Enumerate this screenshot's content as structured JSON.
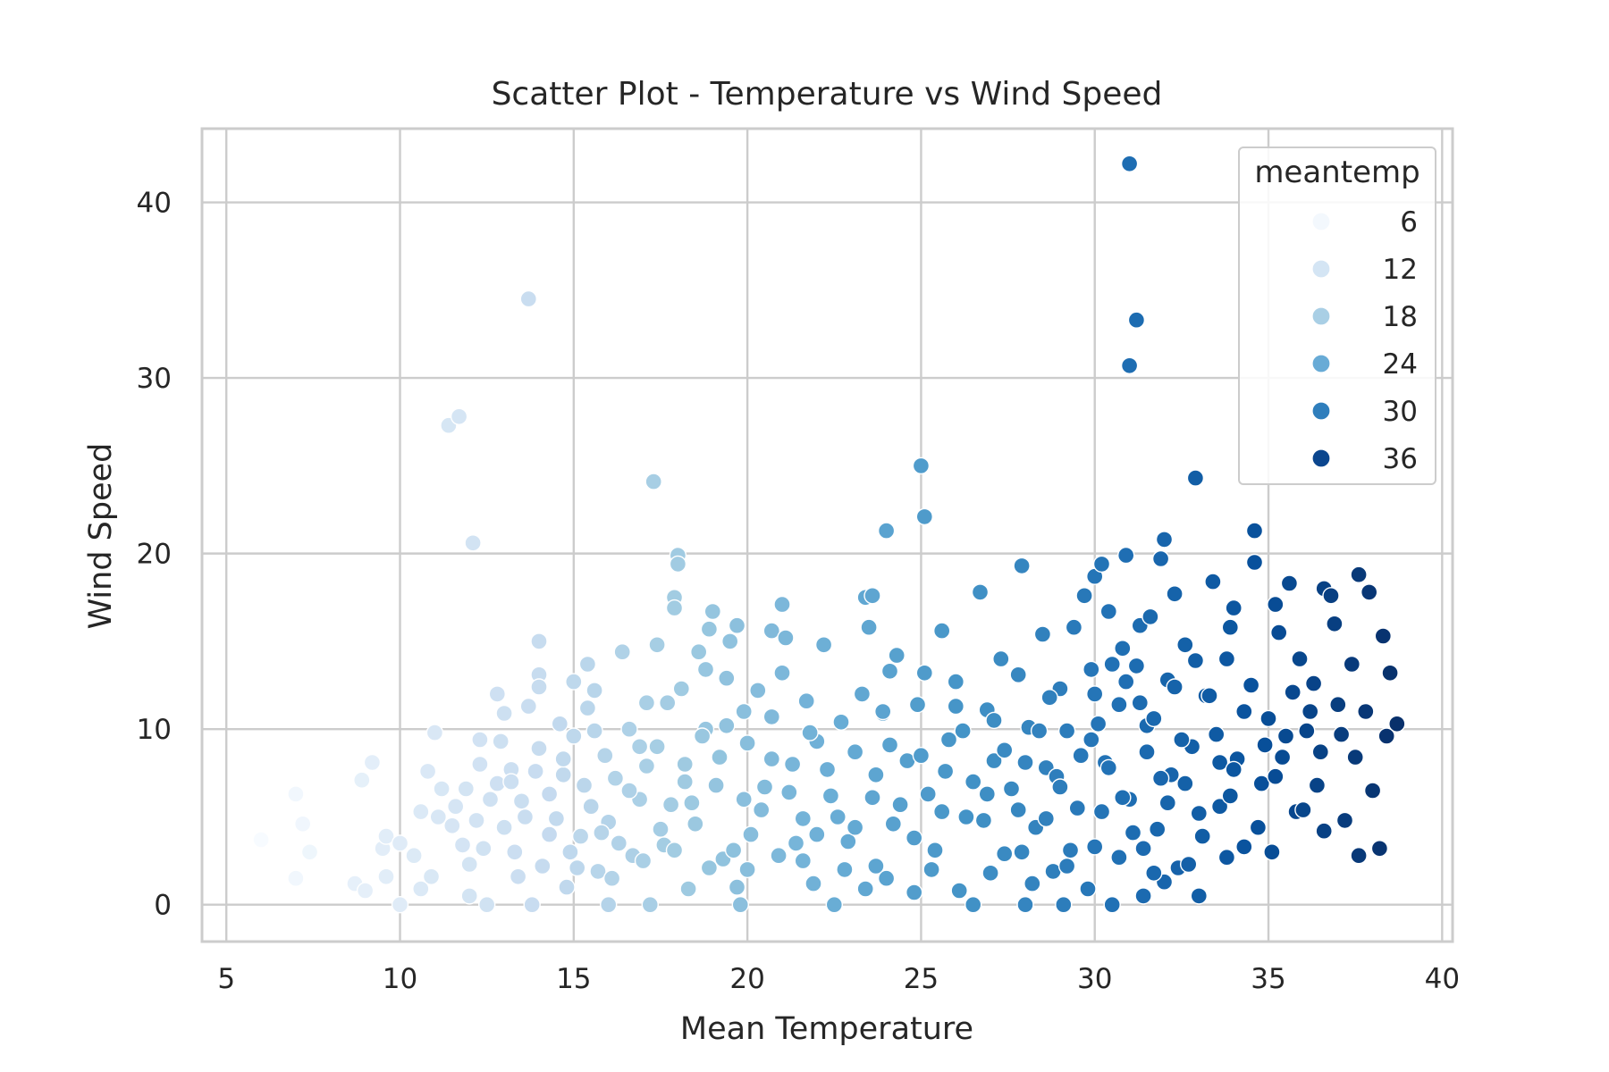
{
  "chart_data": {
    "type": "scatter",
    "title": "Scatter Plot - Temperature vs Wind Speed",
    "xlabel": "Mean Temperature",
    "ylabel": "Wind Speed",
    "xlim": [
      4.3,
      40.3
    ],
    "ylim": [
      -2.1,
      44.2
    ],
    "x_ticks": [
      5,
      10,
      15,
      20,
      25,
      30,
      35,
      40
    ],
    "y_ticks": [
      0,
      10,
      20,
      30,
      40
    ],
    "grid": true,
    "legend": {
      "title": "meantemp",
      "position": "top-right",
      "entries": [
        {
          "label": "6",
          "value": 6,
          "color": "#f3f8fd"
        },
        {
          "label": "12",
          "value": 12,
          "color": "#d4e5f4"
        },
        {
          "label": "18",
          "value": 18,
          "color": "#a9cfe5"
        },
        {
          "label": "24",
          "value": 24,
          "color": "#68abd6"
        },
        {
          "label": "30",
          "value": 30,
          "color": "#2f7ebc"
        },
        {
          "label": "36",
          "value": 36,
          "color": "#0b468e"
        }
      ]
    },
    "hue": "meantemp",
    "colormap": [
      "#f7fbff",
      "#deebf7",
      "#c6dbef",
      "#9ecae1",
      "#6baed6",
      "#4292c6",
      "#2171b5",
      "#08519c",
      "#08306b"
    ],
    "color_range": [
      6,
      38.7
    ],
    "points": [
      [
        6.0,
        3.7
      ],
      [
        7.0,
        6.3
      ],
      [
        7.0,
        1.5
      ],
      [
        7.2,
        4.6
      ],
      [
        7.4,
        3.0
      ],
      [
        8.7,
        1.2
      ],
      [
        8.9,
        7.1
      ],
      [
        9.0,
        0.8
      ],
      [
        9.2,
        8.1
      ],
      [
        9.5,
        3.2
      ],
      [
        9.6,
        3.9
      ],
      [
        9.6,
        1.6
      ],
      [
        10.0,
        3.5
      ],
      [
        10.0,
        0.0
      ],
      [
        10.4,
        2.8
      ],
      [
        10.6,
        5.3
      ],
      [
        10.6,
        0.9
      ],
      [
        10.8,
        7.6
      ],
      [
        10.9,
        1.6
      ],
      [
        11.0,
        9.8
      ],
      [
        11.1,
        5.0
      ],
      [
        11.2,
        6.6
      ],
      [
        11.4,
        27.3
      ],
      [
        11.6,
        5.6
      ],
      [
        11.7,
        27.8
      ],
      [
        11.8,
        3.4
      ],
      [
        11.9,
        6.6
      ],
      [
        12.0,
        0.5
      ],
      [
        12.1,
        20.6
      ],
      [
        12.2,
        4.8
      ],
      [
        12.3,
        8.0
      ],
      [
        12.4,
        3.2
      ],
      [
        12.5,
        0.0
      ],
      [
        12.6,
        6.0
      ],
      [
        12.8,
        12.0
      ],
      [
        12.9,
        9.3
      ],
      [
        13.0,
        4.4
      ],
      [
        13.0,
        10.9
      ],
      [
        13.2,
        7.7
      ],
      [
        13.4,
        1.6
      ],
      [
        13.5,
        5.9
      ],
      [
        13.7,
        11.3
      ],
      [
        13.7,
        34.5
      ],
      [
        13.8,
        0.0
      ],
      [
        14.0,
        15.0
      ],
      [
        14.0,
        8.9
      ],
      [
        14.0,
        13.1
      ],
      [
        14.0,
        12.4
      ],
      [
        14.1,
        2.2
      ],
      [
        14.3,
        6.3
      ],
      [
        14.5,
        4.9
      ],
      [
        14.6,
        10.3
      ],
      [
        14.7,
        7.4
      ],
      [
        14.8,
        1.0
      ],
      [
        15.0,
        9.6
      ],
      [
        15.0,
        12.7
      ],
      [
        15.2,
        3.9
      ],
      [
        15.4,
        11.2
      ],
      [
        15.4,
        13.7
      ],
      [
        15.5,
        5.6
      ],
      [
        15.6,
        12.2
      ],
      [
        15.7,
        1.9
      ],
      [
        15.9,
        8.5
      ],
      [
        16.0,
        4.7
      ],
      [
        16.0,
        0.0
      ],
      [
        16.2,
        7.2
      ],
      [
        16.4,
        14.4
      ],
      [
        16.6,
        10.0
      ],
      [
        16.7,
        2.8
      ],
      [
        16.9,
        6.0
      ],
      [
        17.1,
        11.5
      ],
      [
        17.2,
        0.0
      ],
      [
        17.3,
        24.1
      ],
      [
        17.4,
        14.8
      ],
      [
        17.4,
        9.0
      ],
      [
        17.6,
        3.4
      ],
      [
        17.8,
        5.7
      ],
      [
        17.9,
        17.5
      ],
      [
        17.9,
        16.9
      ],
      [
        18.0,
        19.9
      ],
      [
        18.0,
        19.4
      ],
      [
        18.1,
        12.3
      ],
      [
        18.2,
        8.0
      ],
      [
        18.3,
        0.9
      ],
      [
        18.5,
        4.6
      ],
      [
        18.6,
        14.4
      ],
      [
        18.8,
        10.0
      ],
      [
        18.8,
        13.4
      ],
      [
        18.9,
        15.7
      ],
      [
        19.0,
        16.7
      ],
      [
        19.1,
        6.8
      ],
      [
        19.3,
        2.6
      ],
      [
        19.4,
        12.9
      ],
      [
        19.5,
        15.0
      ],
      [
        19.7,
        15.9
      ],
      [
        19.8,
        0.0
      ],
      [
        19.9,
        11.0
      ],
      [
        20.0,
        9.2
      ],
      [
        20.1,
        4.0
      ],
      [
        20.3,
        12.2
      ],
      [
        20.5,
        6.7
      ],
      [
        20.7,
        15.6
      ],
      [
        20.7,
        10.7
      ],
      [
        20.9,
        2.8
      ],
      [
        21.0,
        17.1
      ],
      [
        21.0,
        13.2
      ],
      [
        21.1,
        15.2
      ],
      [
        21.3,
        8.0
      ],
      [
        21.6,
        4.9
      ],
      [
        21.7,
        11.6
      ],
      [
        21.9,
        1.2
      ],
      [
        22.0,
        9.3
      ],
      [
        22.2,
        14.8
      ],
      [
        22.4,
        6.2
      ],
      [
        22.5,
        0.0
      ],
      [
        22.7,
        10.4
      ],
      [
        22.9,
        3.6
      ],
      [
        23.1,
        8.7
      ],
      [
        23.3,
        12.0
      ],
      [
        23.4,
        17.5
      ],
      [
        23.5,
        15.8
      ],
      [
        23.6,
        17.6
      ],
      [
        23.6,
        6.1
      ],
      [
        23.7,
        2.2
      ],
      [
        23.9,
        10.9
      ],
      [
        24.0,
        21.3
      ],
      [
        24.1,
        13.3
      ],
      [
        24.2,
        4.6
      ],
      [
        24.3,
        14.2
      ],
      [
        24.6,
        8.2
      ],
      [
        24.8,
        0.7
      ],
      [
        24.9,
        11.4
      ],
      [
        25.0,
        25.0
      ],
      [
        25.1,
        22.1
      ],
      [
        25.1,
        13.2
      ],
      [
        25.2,
        6.3
      ],
      [
        25.4,
        3.1
      ],
      [
        25.6,
        15.6
      ],
      [
        25.8,
        9.4
      ],
      [
        26.0,
        12.7
      ],
      [
        26.1,
        0.8
      ],
      [
        26.3,
        5.0
      ],
      [
        26.5,
        0.0
      ],
      [
        26.7,
        17.8
      ],
      [
        26.9,
        11.1
      ],
      [
        27.1,
        8.2
      ],
      [
        27.3,
        14.0
      ],
      [
        27.4,
        2.9
      ],
      [
        27.6,
        6.6
      ],
      [
        27.8,
        13.1
      ],
      [
        27.9,
        19.3
      ],
      [
        28.0,
        0.0
      ],
      [
        28.1,
        10.1
      ],
      [
        28.3,
        4.4
      ],
      [
        28.5,
        15.4
      ],
      [
        28.6,
        7.8
      ],
      [
        28.8,
        1.9
      ],
      [
        29.0,
        12.3
      ],
      [
        29.1,
        0.0
      ],
      [
        29.2,
        9.9
      ],
      [
        29.4,
        15.8
      ],
      [
        29.5,
        5.5
      ],
      [
        29.7,
        17.6
      ],
      [
        29.9,
        13.4
      ],
      [
        30.0,
        3.3
      ],
      [
        30.0,
        18.7
      ],
      [
        30.2,
        19.4
      ],
      [
        30.3,
        8.1
      ],
      [
        30.4,
        16.7
      ],
      [
        30.5,
        0.0
      ],
      [
        30.7,
        11.4
      ],
      [
        30.8,
        14.6
      ],
      [
        30.9,
        19.9
      ],
      [
        31.0,
        42.2
      ],
      [
        31.0,
        30.7
      ],
      [
        31.0,
        6.0
      ],
      [
        31.2,
        33.3
      ],
      [
        31.3,
        15.9
      ],
      [
        31.4,
        0.5
      ],
      [
        31.5,
        10.2
      ],
      [
        31.6,
        16.4
      ],
      [
        31.8,
        4.3
      ],
      [
        31.9,
        19.7
      ],
      [
        32.0,
        20.8
      ],
      [
        32.1,
        12.8
      ],
      [
        32.2,
        7.4
      ],
      [
        32.3,
        17.7
      ],
      [
        32.4,
        2.1
      ],
      [
        32.6,
        14.8
      ],
      [
        32.8,
        9.0
      ],
      [
        32.9,
        24.3
      ],
      [
        33.0,
        0.5
      ],
      [
        33.2,
        11.9
      ],
      [
        33.4,
        18.4
      ],
      [
        33.6,
        5.6
      ],
      [
        33.8,
        14.0
      ],
      [
        33.9,
        15.8
      ],
      [
        34.0,
        16.9
      ],
      [
        34.1,
        8.3
      ],
      [
        34.3,
        3.3
      ],
      [
        34.5,
        12.5
      ],
      [
        34.6,
        21.3
      ],
      [
        34.6,
        19.5
      ],
      [
        34.8,
        6.9
      ],
      [
        35.0,
        10.6
      ],
      [
        35.1,
        3.0
      ],
      [
        35.2,
        17.1
      ],
      [
        35.3,
        15.5
      ],
      [
        35.4,
        8.4
      ],
      [
        35.6,
        18.3
      ],
      [
        35.7,
        12.1
      ],
      [
        35.8,
        5.3
      ],
      [
        35.9,
        14.0
      ],
      [
        36.1,
        9.9
      ],
      [
        36.3,
        12.6
      ],
      [
        36.4,
        6.8
      ],
      [
        36.6,
        18.0
      ],
      [
        36.6,
        4.2
      ],
      [
        36.8,
        17.6
      ],
      [
        36.9,
        16.0
      ],
      [
        37.0,
        11.4
      ],
      [
        37.2,
        4.8
      ],
      [
        37.4,
        13.7
      ],
      [
        37.5,
        8.4
      ],
      [
        37.6,
        18.8
      ],
      [
        37.6,
        2.8
      ],
      [
        37.8,
        11.0
      ],
      [
        37.9,
        17.8
      ],
      [
        38.0,
        6.5
      ],
      [
        38.2,
        3.2
      ],
      [
        38.3,
        15.3
      ],
      [
        38.4,
        9.6
      ],
      [
        38.5,
        13.2
      ],
      [
        38.7,
        10.3
      ],
      [
        29.6,
        8.5
      ],
      [
        30.8,
        6.1
      ],
      [
        31.1,
        4.1
      ],
      [
        31.7,
        10.6
      ],
      [
        32.3,
        12.4
      ],
      [
        32.7,
        2.3
      ],
      [
        33.5,
        9.7
      ],
      [
        30.4,
        7.8
      ],
      [
        29.3,
        3.1
      ],
      [
        28.4,
        9.9
      ],
      [
        27.8,
        5.4
      ],
      [
        31.9,
        7.2
      ],
      [
        32.5,
        9.4
      ],
      [
        33.9,
        6.2
      ],
      [
        34.7,
        4.4
      ],
      [
        28.2,
        1.2
      ],
      [
        30.0,
        12.0
      ],
      [
        31.3,
        11.5
      ],
      [
        32.9,
        13.9
      ],
      [
        29.8,
        0.9
      ],
      [
        30.7,
        2.7
      ],
      [
        33.1,
        3.9
      ],
      [
        34.3,
        11.0
      ],
      [
        28.9,
        7.3
      ],
      [
        27.4,
        8.8
      ],
      [
        26.8,
        4.8
      ],
      [
        27.1,
        10.5
      ],
      [
        25.7,
        7.6
      ],
      [
        24.4,
        5.7
      ],
      [
        23.1,
        4.4
      ],
      [
        22.3,
        7.7
      ],
      [
        21.4,
        3.5
      ],
      [
        20.4,
        5.4
      ],
      [
        19.6,
        3.1
      ],
      [
        19.2,
        8.4
      ],
      [
        18.4,
        5.8
      ],
      [
        17.5,
        4.3
      ],
      [
        16.6,
        6.5
      ],
      [
        15.8,
        4.1
      ],
      [
        15.1,
        2.1
      ],
      [
        14.3,
        4.0
      ],
      [
        13.3,
        3.0
      ],
      [
        12.8,
        6.9
      ],
      [
        12.0,
        2.3
      ],
      [
        13.9,
        7.6
      ],
      [
        16.3,
        3.5
      ],
      [
        17.1,
        7.9
      ],
      [
        18.9,
        2.1
      ],
      [
        20.7,
        8.3
      ],
      [
        22.8,
        2.0
      ],
      [
        24.1,
        9.1
      ],
      [
        25.3,
        2.0
      ],
      [
        26.5,
        7.0
      ],
      [
        28.6,
        4.9
      ],
      [
        30.2,
        5.3
      ],
      [
        31.5,
        8.7
      ],
      [
        32.1,
        5.8
      ],
      [
        33.6,
        8.1
      ],
      [
        35.5,
        9.6
      ],
      [
        36.2,
        11.0
      ],
      [
        35.2,
        7.3
      ],
      [
        34.9,
        9.1
      ],
      [
        33.3,
        11.9
      ],
      [
        31.2,
        13.6
      ],
      [
        30.1,
        10.3
      ],
      [
        29.0,
        6.7
      ],
      [
        27.9,
        3.0
      ],
      [
        26.2,
        9.9
      ],
      [
        24.8,
        3.8
      ],
      [
        23.7,
        7.4
      ],
      [
        21.8,
        9.8
      ],
      [
        20.0,
        2.0
      ],
      [
        18.7,
        9.6
      ],
      [
        17.0,
        2.5
      ],
      [
        15.3,
        6.8
      ],
      [
        13.6,
        5.0
      ],
      [
        11.5,
        4.5
      ],
      [
        12.3,
        9.4
      ],
      [
        14.7,
        8.3
      ],
      [
        16.9,
        9.0
      ],
      [
        18.2,
        7.0
      ],
      [
        19.9,
        6.0
      ],
      [
        21.2,
        6.4
      ],
      [
        22.6,
        5.0
      ],
      [
        24.0,
        1.5
      ],
      [
        25.6,
        5.3
      ],
      [
        27.0,
        1.8
      ],
      [
        28.7,
        11.8
      ],
      [
        30.5,
        13.7
      ],
      [
        32.0,
        1.3
      ],
      [
        33.0,
        5.2
      ],
      [
        34.0,
        7.7
      ],
      [
        36.5,
        8.7
      ],
      [
        37.1,
        9.7
      ],
      [
        36.0,
        5.4
      ],
      [
        29.9,
        9.4
      ],
      [
        31.4,
        3.2
      ],
      [
        32.6,
        6.9
      ],
      [
        30.9,
        12.7
      ],
      [
        28.0,
        8.1
      ],
      [
        26.0,
        11.3
      ],
      [
        23.9,
        11.0
      ],
      [
        22.0,
        4.0
      ],
      [
        19.4,
        10.2
      ],
      [
        17.7,
        11.5
      ],
      [
        15.6,
        9.9
      ],
      [
        13.2,
        7.0
      ],
      [
        14.9,
        3.0
      ],
      [
        16.1,
        1.5
      ],
      [
        17.9,
        3.1
      ],
      [
        19.7,
        1.0
      ],
      [
        21.6,
        2.5
      ],
      [
        23.4,
        0.9
      ],
      [
        25.0,
        8.5
      ],
      [
        26.9,
        6.3
      ],
      [
        29.2,
        2.2
      ],
      [
        31.7,
        1.8
      ],
      [
        33.8,
        2.7
      ]
    ]
  }
}
